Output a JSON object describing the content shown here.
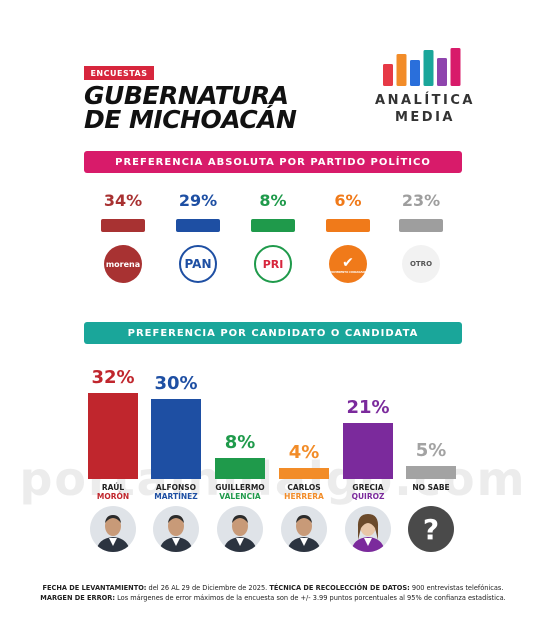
{
  "header": {
    "tag": "ENCUESTAS",
    "title_line1": "GUBERNATURA",
    "title_line2": "DE MICHOACÁN"
  },
  "brand": {
    "line1": "ANALÍTICA",
    "line2": "MEDIA",
    "bar_colors": [
      "#e63946",
      "#f28c28",
      "#2a6fdb",
      "#1aa69a",
      "#8e44ad",
      "#d81b6a"
    ]
  },
  "section_parties": {
    "title": "PREFERENCIA ABSOLUTA POR PARTIDO POLÍTICO"
  },
  "section_candidates": {
    "title": "PREFERENCIA POR CANDIDATO O CANDIDATA"
  },
  "watermark": "portalhidalgo.com",
  "chart_data": [
    {
      "type": "bar",
      "title": "PREFERENCIA ABSOLUTA POR PARTIDO POLÍTICO",
      "categories": [
        "morena",
        "PAN",
        "PRI",
        "MOVIMIENTO CIUDADANO",
        "OTRO"
      ],
      "values": [
        34,
        29,
        8,
        6,
        23
      ],
      "labels": [
        "34%",
        "29%",
        "8%",
        "6%",
        "23%"
      ],
      "colors": [
        "#a83232",
        "#1e4fa3",
        "#1f9a4b",
        "#f07a1a",
        "#9e9e9e"
      ],
      "unit": "%"
    },
    {
      "type": "bar",
      "title": "PREFERENCIA POR CANDIDATO O CANDIDATA",
      "categories": [
        "RAÚL MORÓN",
        "ALFONSO MARTÍNEZ",
        "GUILLERMO VALENCIA",
        "CARLOS HERRERA",
        "GRECIA QUIROZ",
        "NO SABE"
      ],
      "first_names": [
        "RAÚL",
        "ALFONSO",
        "GUILLERMO",
        "CARLOS",
        "GRECIA",
        "NO SABE"
      ],
      "last_names": [
        "MORÓN",
        "MARTÍNEZ",
        "VALENCIA",
        "HERRERA",
        "QUIROZ",
        ""
      ],
      "values": [
        32,
        30,
        8,
        4,
        21,
        5
      ],
      "labels": [
        "32%",
        "30%",
        "8%",
        "4%",
        "21%",
        "5%"
      ],
      "colors": [
        "#c0262d",
        "#1e4fa3",
        "#1f9a4b",
        "#f28c28",
        "#7b2a9c",
        "#a3a3a3"
      ],
      "unit": "%"
    }
  ],
  "footer": {
    "line1_label": "FECHA DE LEVANTAMIENTO:",
    "line1_text": " del  26 AL 29 de Diciembre de 2025. ",
    "line1_label2": "TÉCNICA DE RECOLECCIÓN DE DATOS:",
    "line1_text2": " 900 entrevistas telefónicas.",
    "line2_label": "MARGEN DE ERROR:",
    "line2_text": " Los márgenes de error máximos de la encuesta son de +/- 3.99 puntos porcentuales al 95% de confianza estadística."
  }
}
